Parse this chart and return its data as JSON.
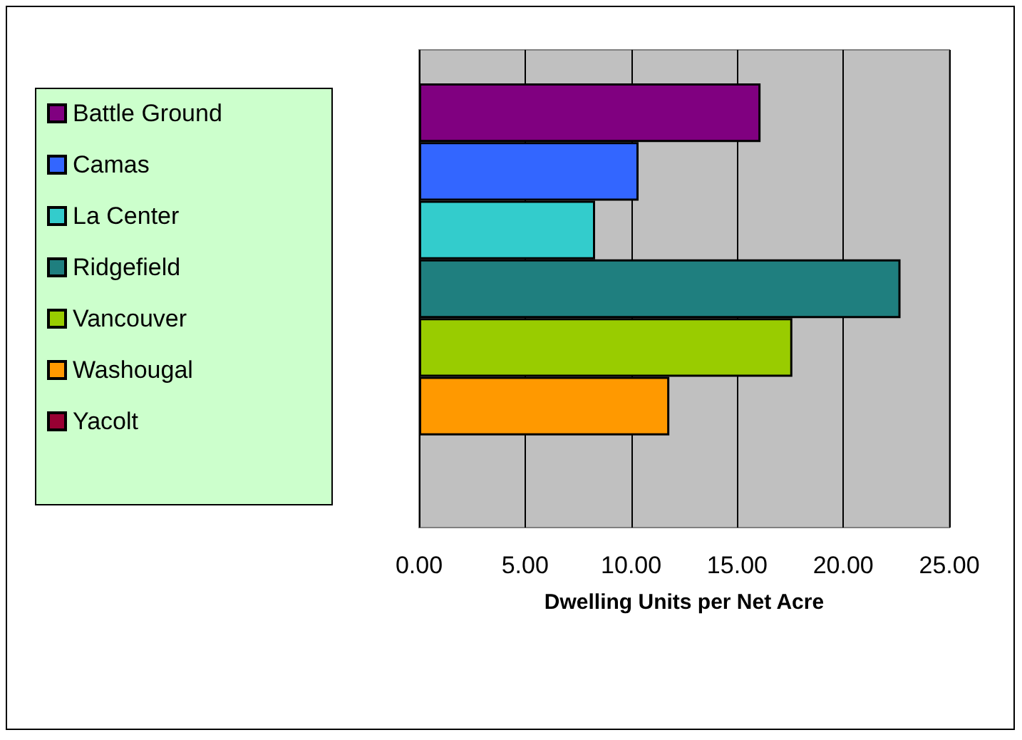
{
  "chart_data": {
    "type": "bar",
    "orientation": "horizontal",
    "categories": [
      null
    ],
    "series": [
      {
        "name": "Battle Ground",
        "color": "#800080",
        "values": [
          16.1
        ]
      },
      {
        "name": "Camas",
        "color": "#3366ff",
        "values": [
          10.35
        ]
      },
      {
        "name": "La Center",
        "color": "#33cccc",
        "values": [
          8.3
        ]
      },
      {
        "name": "Ridgefield",
        "color": "#1f7f7f",
        "values": [
          22.7
        ]
      },
      {
        "name": "Vancouver",
        "color": "#99cc00",
        "values": [
          17.6
        ]
      },
      {
        "name": "Washougal",
        "color": "#ff9900",
        "values": [
          11.8
        ]
      },
      {
        "name": "Yacolt",
        "color": "#990033",
        "values": [
          null
        ]
      }
    ],
    "xlabel": "Dwelling Units per Net Acre",
    "xlim": [
      0,
      25
    ],
    "xticks": [
      {
        "value": 0,
        "label": "0.00"
      },
      {
        "value": 5,
        "label": "5.00"
      },
      {
        "value": 10,
        "label": "10.00"
      },
      {
        "value": 15,
        "label": "15.00"
      },
      {
        "value": 20,
        "label": "20.00"
      },
      {
        "value": 25,
        "label": "25.00"
      }
    ],
    "grid": "x",
    "legend": "left"
  }
}
